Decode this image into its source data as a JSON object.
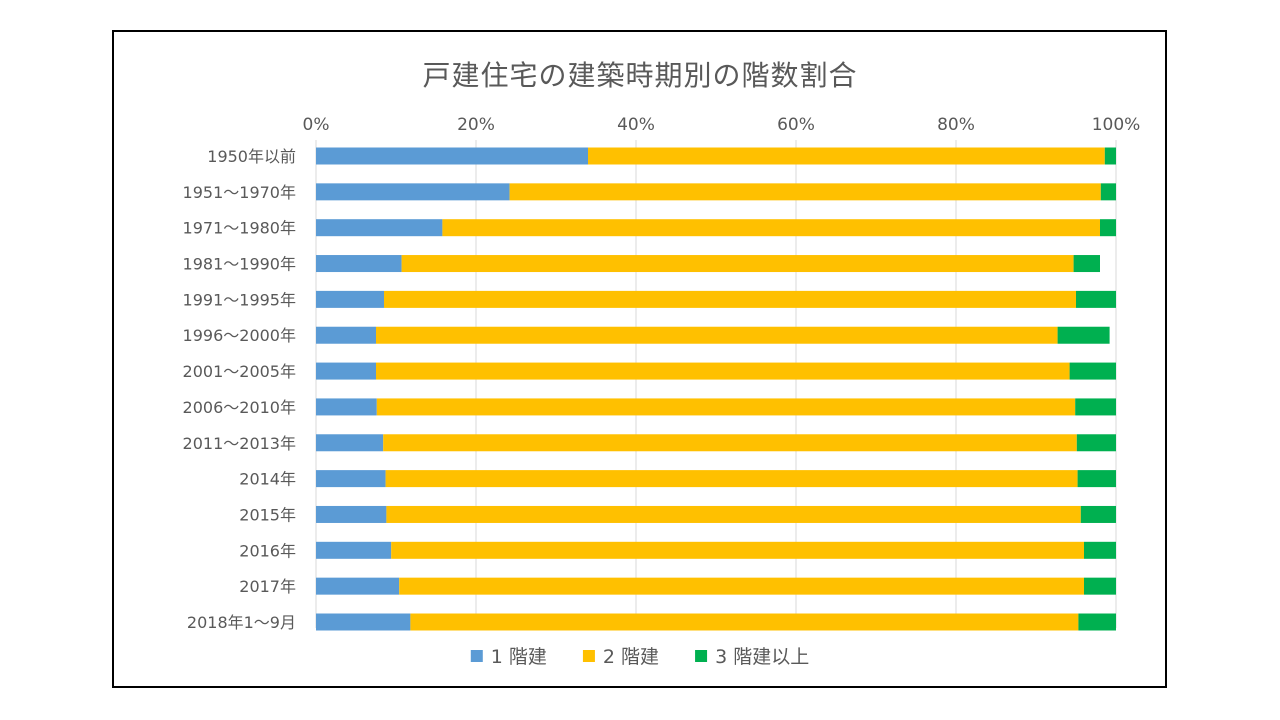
{
  "chart_data": {
    "type": "bar",
    "orientation": "horizontal",
    "stacked": "percent",
    "title": "戸建住宅の建築時期別の階数割合",
    "x_axis_position": "top",
    "xlim": [
      0,
      100
    ],
    "x_ticks": [
      "0%",
      "20%",
      "40%",
      "60%",
      "80%",
      "100%"
    ],
    "x_tick_values": [
      0,
      20,
      40,
      60,
      80,
      100
    ],
    "grid": true,
    "legend_position": "bottom",
    "categories": [
      "1950年以前",
      "1951～1970年",
      "1971～1980年",
      "1981～1990年",
      "1991～1995年",
      "1996～2000年",
      "2001～2005年",
      "2006～2010年",
      "2011～2013年",
      "2014年",
      "2015年",
      "2016年",
      "2017年",
      "2018年1～9月"
    ],
    "series": [
      {
        "name": "1 階建",
        "color": "#5B9BD5",
        "values": [
          34.0,
          24.2,
          15.8,
          10.7,
          8.5,
          7.5,
          7.5,
          7.6,
          8.4,
          8.7,
          8.8,
          9.4,
          10.4,
          11.8
        ]
      },
      {
        "name": "2 階建",
        "color": "#FFC000",
        "values": [
          64.6,
          73.9,
          82.2,
          84.0,
          86.5,
          85.2,
          86.7,
          87.3,
          86.7,
          86.5,
          86.8,
          86.6,
          85.6,
          83.5
        ]
      },
      {
        "name": "3 階建以上",
        "color": "#00B050",
        "values": [
          1.4,
          1.9,
          2.0,
          3.3,
          5.0,
          6.5,
          5.8,
          5.1,
          4.9,
          4.8,
          4.4,
          4.0,
          4.0,
          4.7
        ]
      }
    ]
  }
}
